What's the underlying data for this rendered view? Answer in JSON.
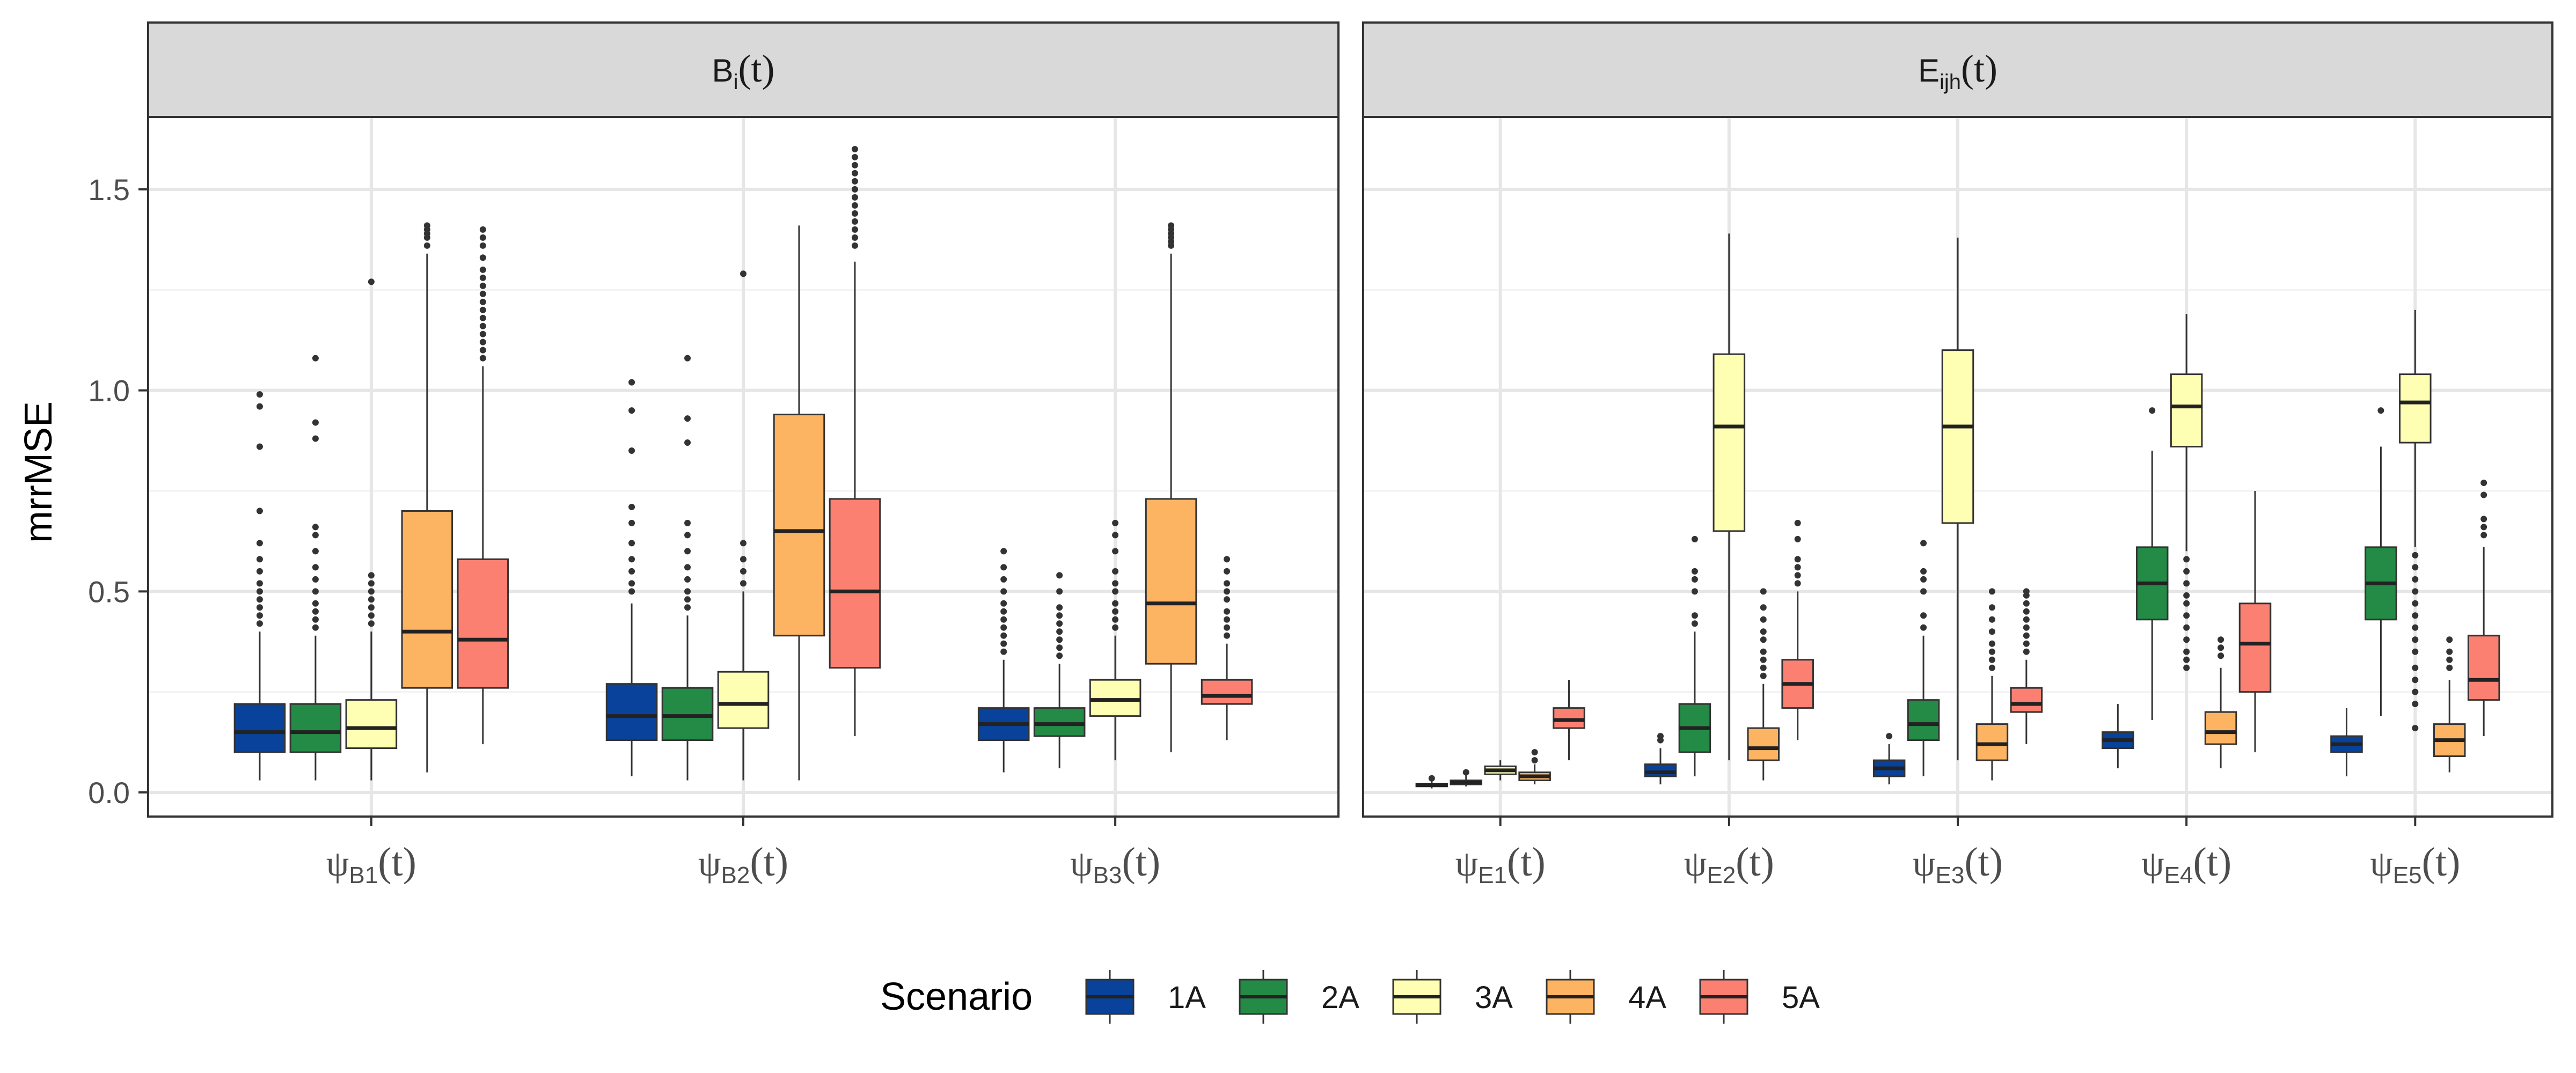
{
  "chart_data": {
    "type": "boxplot",
    "ylabel": "mrrMSE",
    "ylim": [
      -0.06,
      1.68
    ],
    "yticks": [
      "0.0",
      "0.5",
      "1.0",
      "1.5"
    ],
    "grid": true,
    "legend": {
      "title": "Scenario",
      "position": "bottom",
      "entries": [
        {
          "label": "1A",
          "color": "#08429A"
        },
        {
          "label": "2A",
          "color": "#238B45"
        },
        {
          "label": "3A",
          "color": "#FFFFB3"
        },
        {
          "label": "4A",
          "color": "#FDB462"
        },
        {
          "label": "5A",
          "color": "#FB8072"
        }
      ]
    },
    "panels": [
      {
        "strip": {
          "main": "B",
          "sub": "i",
          "arg": "(t)"
        },
        "categories": [
          {
            "main": "ψ",
            "sub": "B1",
            "arg": "(t)"
          },
          {
            "main": "ψ",
            "sub": "B2",
            "arg": "(t)"
          },
          {
            "main": "ψ",
            "sub": "B3",
            "arg": "(t)"
          }
        ],
        "series": [
          {
            "name": "1A",
            "boxes": [
              {
                "whisker_low": 0.03,
                "q1": 0.1,
                "median": 0.15,
                "q3": 0.22,
                "whisker_high": 0.4,
                "outliers": [
                  0.42,
                  0.44,
                  0.46,
                  0.48,
                  0.5,
                  0.52,
                  0.55,
                  0.58,
                  0.62,
                  0.7,
                  0.86,
                  0.96,
                  0.99
                ]
              },
              {
                "whisker_low": 0.04,
                "q1": 0.13,
                "median": 0.19,
                "q3": 0.27,
                "whisker_high": 0.47,
                "outliers": [
                  0.5,
                  0.52,
                  0.55,
                  0.58,
                  0.62,
                  0.67,
                  0.71,
                  0.85,
                  0.95,
                  1.02
                ]
              },
              {
                "whisker_low": 0.05,
                "q1": 0.13,
                "median": 0.17,
                "q3": 0.21,
                "whisker_high": 0.33,
                "outliers": [
                  0.35,
                  0.37,
                  0.39,
                  0.41,
                  0.43,
                  0.45,
                  0.47,
                  0.5,
                  0.53,
                  0.56,
                  0.6
                ]
              }
            ]
          },
          {
            "name": "2A",
            "boxes": [
              {
                "whisker_low": 0.03,
                "q1": 0.1,
                "median": 0.15,
                "q3": 0.22,
                "whisker_high": 0.39,
                "outliers": [
                  0.41,
                  0.43,
                  0.45,
                  0.47,
                  0.5,
                  0.53,
                  0.56,
                  0.6,
                  0.64,
                  0.66,
                  0.88,
                  0.92,
                  1.08
                ]
              },
              {
                "whisker_low": 0.03,
                "q1": 0.13,
                "median": 0.19,
                "q3": 0.26,
                "whisker_high": 0.44,
                "outliers": [
                  0.46,
                  0.48,
                  0.5,
                  0.53,
                  0.56,
                  0.6,
                  0.64,
                  0.67,
                  0.87,
                  0.93,
                  1.08
                ]
              },
              {
                "whisker_low": 0.06,
                "q1": 0.14,
                "median": 0.17,
                "q3": 0.21,
                "whisker_high": 0.32,
                "outliers": [
                  0.34,
                  0.36,
                  0.38,
                  0.4,
                  0.42,
                  0.44,
                  0.46,
                  0.5,
                  0.54
                ]
              }
            ]
          },
          {
            "name": "3A",
            "boxes": [
              {
                "whisker_low": 0.03,
                "q1": 0.11,
                "median": 0.16,
                "q3": 0.23,
                "whisker_high": 0.4,
                "outliers": [
                  0.42,
                  0.44,
                  0.46,
                  0.48,
                  0.5,
                  0.52,
                  0.54,
                  1.27
                ]
              },
              {
                "whisker_low": 0.03,
                "q1": 0.16,
                "median": 0.22,
                "q3": 0.3,
                "whisker_high": 0.5,
                "outliers": [
                  0.52,
                  0.55,
                  0.58,
                  0.62,
                  1.29
                ]
              },
              {
                "whisker_low": 0.08,
                "q1": 0.19,
                "median": 0.23,
                "q3": 0.28,
                "whisker_high": 0.39,
                "outliers": [
                  0.41,
                  0.43,
                  0.45,
                  0.47,
                  0.5,
                  0.52,
                  0.55,
                  0.6,
                  0.64,
                  0.67
                ]
              }
            ]
          },
          {
            "name": "4A",
            "boxes": [
              {
                "whisker_low": 0.05,
                "q1": 0.26,
                "median": 0.4,
                "q3": 0.7,
                "whisker_high": 1.34,
                "outliers": [
                  1.36,
                  1.38,
                  1.39,
                  1.4,
                  1.41
                ]
              },
              {
                "whisker_low": 0.03,
                "q1": 0.39,
                "median": 0.65,
                "q3": 0.94,
                "whisker_high": 1.41,
                "outliers": []
              },
              {
                "whisker_low": 0.1,
                "q1": 0.32,
                "median": 0.47,
                "q3": 0.73,
                "whisker_high": 1.34,
                "outliers": [
                  1.36,
                  1.37,
                  1.38,
                  1.39,
                  1.4,
                  1.41
                ]
              }
            ]
          },
          {
            "name": "5A",
            "boxes": [
              {
                "whisker_low": 0.12,
                "q1": 0.26,
                "median": 0.38,
                "q3": 0.58,
                "whisker_high": 1.06,
                "outliers": [
                  1.08,
                  1.1,
                  1.12,
                  1.14,
                  1.16,
                  1.18,
                  1.2,
                  1.22,
                  1.24,
                  1.26,
                  1.28,
                  1.3,
                  1.33,
                  1.36,
                  1.38,
                  1.4
                ]
              },
              {
                "whisker_low": 0.14,
                "q1": 0.31,
                "median": 0.5,
                "q3": 0.73,
                "whisker_high": 1.32,
                "outliers": [
                  1.36,
                  1.38,
                  1.4,
                  1.42,
                  1.44,
                  1.46,
                  1.48,
                  1.5,
                  1.52,
                  1.54,
                  1.56,
                  1.58,
                  1.6
                ]
              },
              {
                "whisker_low": 0.13,
                "q1": 0.22,
                "median": 0.24,
                "q3": 0.28,
                "whisker_high": 0.37,
                "outliers": [
                  0.39,
                  0.41,
                  0.43,
                  0.45,
                  0.48,
                  0.5,
                  0.52,
                  0.55,
                  0.58
                ]
              }
            ]
          }
        ]
      },
      {
        "strip": {
          "main": "E",
          "sub": "ijh",
          "arg": "(t)"
        },
        "categories": [
          {
            "main": "ψ",
            "sub": "E1",
            "arg": "(t)"
          },
          {
            "main": "ψ",
            "sub": "E2",
            "arg": "(t)"
          },
          {
            "main": "ψ",
            "sub": "E3",
            "arg": "(t)"
          },
          {
            "main": "ψ",
            "sub": "E4",
            "arg": "(t)"
          },
          {
            "main": "ψ",
            "sub": "E5",
            "arg": "(t)"
          }
        ],
        "series": [
          {
            "name": "1A",
            "boxes": [
              {
                "whisker_low": 0.01,
                "q1": 0.015,
                "median": 0.018,
                "q3": 0.022,
                "whisker_high": 0.03,
                "outliers": [
                  0.035
                ]
              },
              {
                "whisker_low": 0.02,
                "q1": 0.04,
                "median": 0.05,
                "q3": 0.07,
                "whisker_high": 0.11,
                "outliers": [
                  0.13,
                  0.14
                ]
              },
              {
                "whisker_low": 0.02,
                "q1": 0.04,
                "median": 0.06,
                "q3": 0.08,
                "whisker_high": 0.12,
                "outliers": [
                  0.14
                ]
              },
              {
                "whisker_low": 0.06,
                "q1": 0.11,
                "median": 0.13,
                "q3": 0.15,
                "whisker_high": 0.22,
                "outliers": []
              },
              {
                "whisker_low": 0.04,
                "q1": 0.1,
                "median": 0.12,
                "q3": 0.14,
                "whisker_high": 0.21,
                "outliers": []
              }
            ]
          },
          {
            "name": "2A",
            "boxes": [
              {
                "whisker_low": 0.015,
                "q1": 0.02,
                "median": 0.025,
                "q3": 0.03,
                "whisker_high": 0.045,
                "outliers": [
                  0.05
                ]
              },
              {
                "whisker_low": 0.04,
                "q1": 0.1,
                "median": 0.16,
                "q3": 0.22,
                "whisker_high": 0.4,
                "outliers": [
                  0.42,
                  0.44,
                  0.5,
                  0.53,
                  0.55,
                  0.63
                ]
              },
              {
                "whisker_low": 0.04,
                "q1": 0.13,
                "median": 0.17,
                "q3": 0.23,
                "whisker_high": 0.39,
                "outliers": [
                  0.41,
                  0.44,
                  0.5,
                  0.53,
                  0.55,
                  0.62
                ]
              },
              {
                "whisker_low": 0.18,
                "q1": 0.43,
                "median": 0.52,
                "q3": 0.61,
                "whisker_high": 0.85,
                "outliers": [
                  0.95
                ]
              },
              {
                "whisker_low": 0.19,
                "q1": 0.43,
                "median": 0.52,
                "q3": 0.61,
                "whisker_high": 0.86,
                "outliers": [
                  0.95
                ]
              }
            ]
          },
          {
            "name": "3A",
            "boxes": [
              {
                "whisker_low": 0.03,
                "q1": 0.045,
                "median": 0.055,
                "q3": 0.065,
                "whisker_high": 0.08,
                "outliers": []
              },
              {
                "whisker_low": 0.08,
                "q1": 0.65,
                "median": 0.91,
                "q3": 1.09,
                "whisker_high": 1.39,
                "outliers": []
              },
              {
                "whisker_low": 0.08,
                "q1": 0.67,
                "median": 0.91,
                "q3": 1.1,
                "whisker_high": 1.38,
                "outliers": []
              },
              {
                "whisker_low": 0.6,
                "q1": 0.86,
                "median": 0.96,
                "q3": 1.04,
                "whisker_high": 1.19,
                "outliers": [
                  0.58,
                  0.55,
                  0.52,
                  0.49,
                  0.47,
                  0.44,
                  0.41,
                  0.38,
                  0.35,
                  0.33,
                  0.31
                ]
              },
              {
                "whisker_low": 0.61,
                "q1": 0.87,
                "median": 0.97,
                "q3": 1.04,
                "whisker_high": 1.2,
                "outliers": [
                  0.59,
                  0.56,
                  0.53,
                  0.5,
                  0.47,
                  0.44,
                  0.41,
                  0.38,
                  0.35,
                  0.31,
                  0.28,
                  0.25,
                  0.22,
                  0.16
                ]
              }
            ]
          },
          {
            "name": "4A",
            "boxes": [
              {
                "whisker_low": 0.02,
                "q1": 0.03,
                "median": 0.04,
                "q3": 0.05,
                "whisker_high": 0.07,
                "outliers": [
                  0.08,
                  0.1
                ]
              },
              {
                "whisker_low": 0.03,
                "q1": 0.08,
                "median": 0.11,
                "q3": 0.16,
                "whisker_high": 0.27,
                "outliers": [
                  0.29,
                  0.31,
                  0.33,
                  0.35,
                  0.38,
                  0.4,
                  0.43,
                  0.46,
                  0.5
                ]
              },
              {
                "whisker_low": 0.03,
                "q1": 0.08,
                "median": 0.12,
                "q3": 0.17,
                "whisker_high": 0.29,
                "outliers": [
                  0.31,
                  0.33,
                  0.35,
                  0.37,
                  0.4,
                  0.43,
                  0.46,
                  0.5
                ]
              },
              {
                "whisker_low": 0.06,
                "q1": 0.12,
                "median": 0.15,
                "q3": 0.2,
                "whisker_high": 0.31,
                "outliers": [
                  0.34,
                  0.36,
                  0.38
                ]
              },
              {
                "whisker_low": 0.05,
                "q1": 0.09,
                "median": 0.13,
                "q3": 0.17,
                "whisker_high": 0.28,
                "outliers": [
                  0.31,
                  0.33,
                  0.35,
                  0.38
                ]
              }
            ]
          },
          {
            "name": "5A",
            "boxes": [
              {
                "whisker_low": 0.08,
                "q1": 0.16,
                "median": 0.18,
                "q3": 0.21,
                "whisker_high": 0.28,
                "outliers": []
              },
              {
                "whisker_low": 0.13,
                "q1": 0.21,
                "median": 0.27,
                "q3": 0.33,
                "whisker_high": 0.5,
                "outliers": [
                  0.52,
                  0.54,
                  0.56,
                  0.58,
                  0.63,
                  0.67
                ]
              },
              {
                "whisker_low": 0.12,
                "q1": 0.2,
                "median": 0.22,
                "q3": 0.26,
                "whisker_high": 0.33,
                "outliers": [
                  0.35,
                  0.37,
                  0.39,
                  0.41,
                  0.43,
                  0.45,
                  0.47,
                  0.49,
                  0.5
                ]
              },
              {
                "whisker_low": 0.1,
                "q1": 0.25,
                "median": 0.37,
                "q3": 0.47,
                "whisker_high": 0.75,
                "outliers": []
              },
              {
                "whisker_low": 0.14,
                "q1": 0.23,
                "median": 0.28,
                "q3": 0.39,
                "whisker_high": 0.61,
                "outliers": [
                  0.64,
                  0.66,
                  0.68,
                  0.74,
                  0.77
                ]
              }
            ]
          }
        ]
      }
    ]
  }
}
